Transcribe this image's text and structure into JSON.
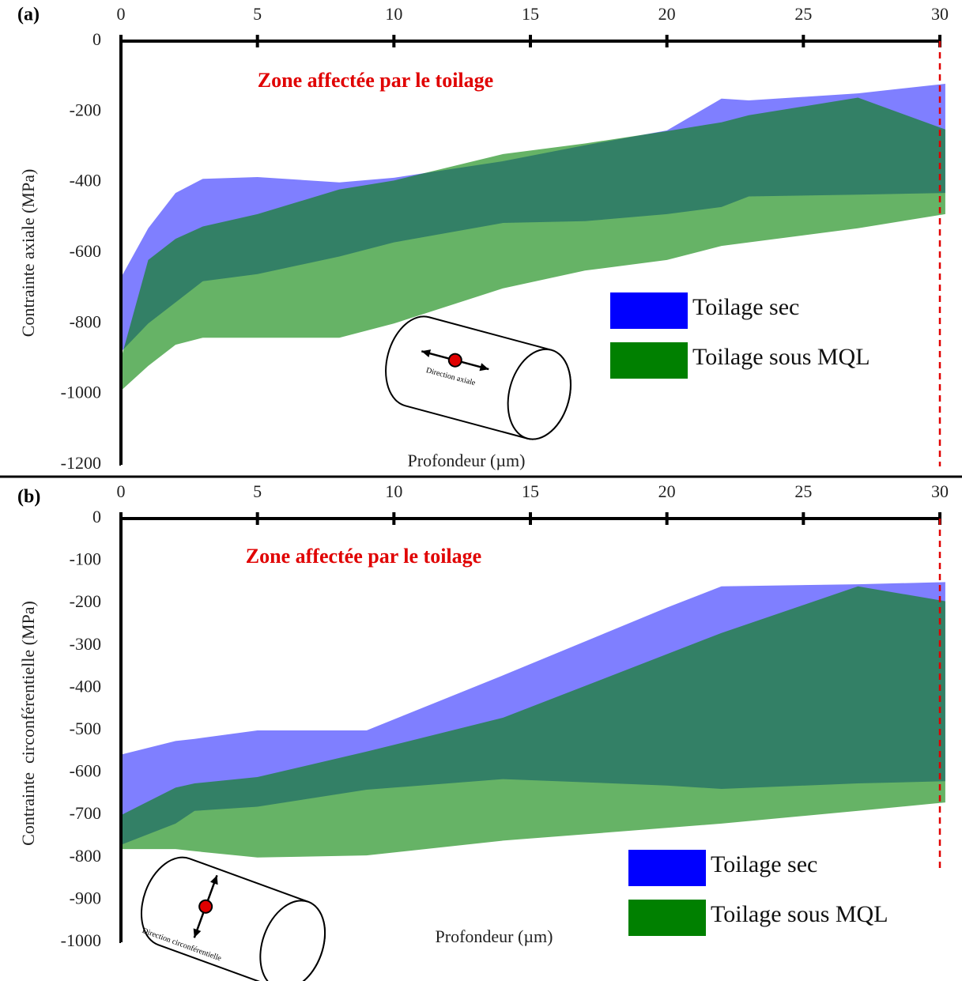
{
  "chart_data": [
    {
      "type": "band",
      "panel_label": "(a)",
      "annotation": "Zone affectée par le toilage",
      "xlabel": "Profondeur (µm)",
      "ylabel": "Contrainte axiale (MPa)",
      "diagram_label": "Direction axiale",
      "xlim": [
        0,
        30
      ],
      "xticks": [
        0,
        5,
        10,
        15,
        20,
        25,
        30
      ],
      "ylim": [
        -1200,
        0
      ],
      "yticks": [
        0,
        -200,
        -400,
        -600,
        -800,
        -1000,
        -1200
      ],
      "vline": 30,
      "x": [
        0,
        1,
        2,
        3,
        5,
        8,
        10,
        14,
        17,
        20,
        22,
        23,
        27,
        30.2
      ],
      "series": [
        {
          "name": "Toilage sec",
          "color": "#0000ff",
          "upper": [
            -670,
            -530,
            -430,
            -390,
            -385,
            -400,
            -387,
            -340,
            -295,
            -253,
            -163,
            -168,
            -148,
            -121
          ],
          "lower": [
            -880,
            -800,
            -740,
            -680,
            -660,
            -610,
            -570,
            -515,
            -510,
            -490,
            -470,
            -440,
            -435,
            -430
          ]
        },
        {
          "name": "Toilage sous MQL",
          "color": "#008000",
          "upper": [
            -900,
            -620,
            -560,
            -525,
            -490,
            -420,
            -395,
            -320,
            -290,
            -255,
            -230,
            -210,
            -160,
            -250
          ],
          "lower": [
            -990,
            -920,
            -860,
            -840,
            -840,
            -840,
            -800,
            -700,
            -650,
            -620,
            -580,
            -570,
            -530,
            -490
          ]
        }
      ]
    },
    {
      "type": "band",
      "panel_label": "(b)",
      "annotation": "Zone affectée par le toilage",
      "xlabel": "Profondeur (µm)",
      "ylabel": "Contrainte  circonférentielle (MPa)",
      "diagram_label": "Direction circonférentielle",
      "xlim": [
        0,
        30
      ],
      "xticks": [
        0,
        5,
        10,
        15,
        20,
        25,
        30
      ],
      "ylim": [
        -1000,
        0
      ],
      "yticks": [
        0,
        -100,
        -200,
        -300,
        -400,
        -500,
        -600,
        -700,
        -800,
        -900,
        -1000
      ],
      "vline": 30,
      "x": [
        0,
        2,
        2.7,
        5,
        9,
        14,
        20,
        22,
        27,
        30.2
      ],
      "series": [
        {
          "name": "Toilage sec",
          "color": "#0000ff",
          "upper": [
            -557,
            -525,
            -520,
            -500,
            -500,
            -370,
            -210,
            -160,
            -155,
            -150
          ],
          "lower": [
            -770,
            -720,
            -690,
            -680,
            -640,
            -615,
            -630,
            -638,
            -625,
            -620
          ]
        },
        {
          "name": "Toilage sous MQL",
          "color": "#008000",
          "upper": [
            -700,
            -635,
            -625,
            -610,
            -550,
            -470,
            -320,
            -270,
            -160,
            -195
          ],
          "lower": [
            -780,
            -780,
            -785,
            -800,
            -795,
            -760,
            -730,
            -720,
            -690,
            -670
          ]
        }
      ]
    }
  ]
}
